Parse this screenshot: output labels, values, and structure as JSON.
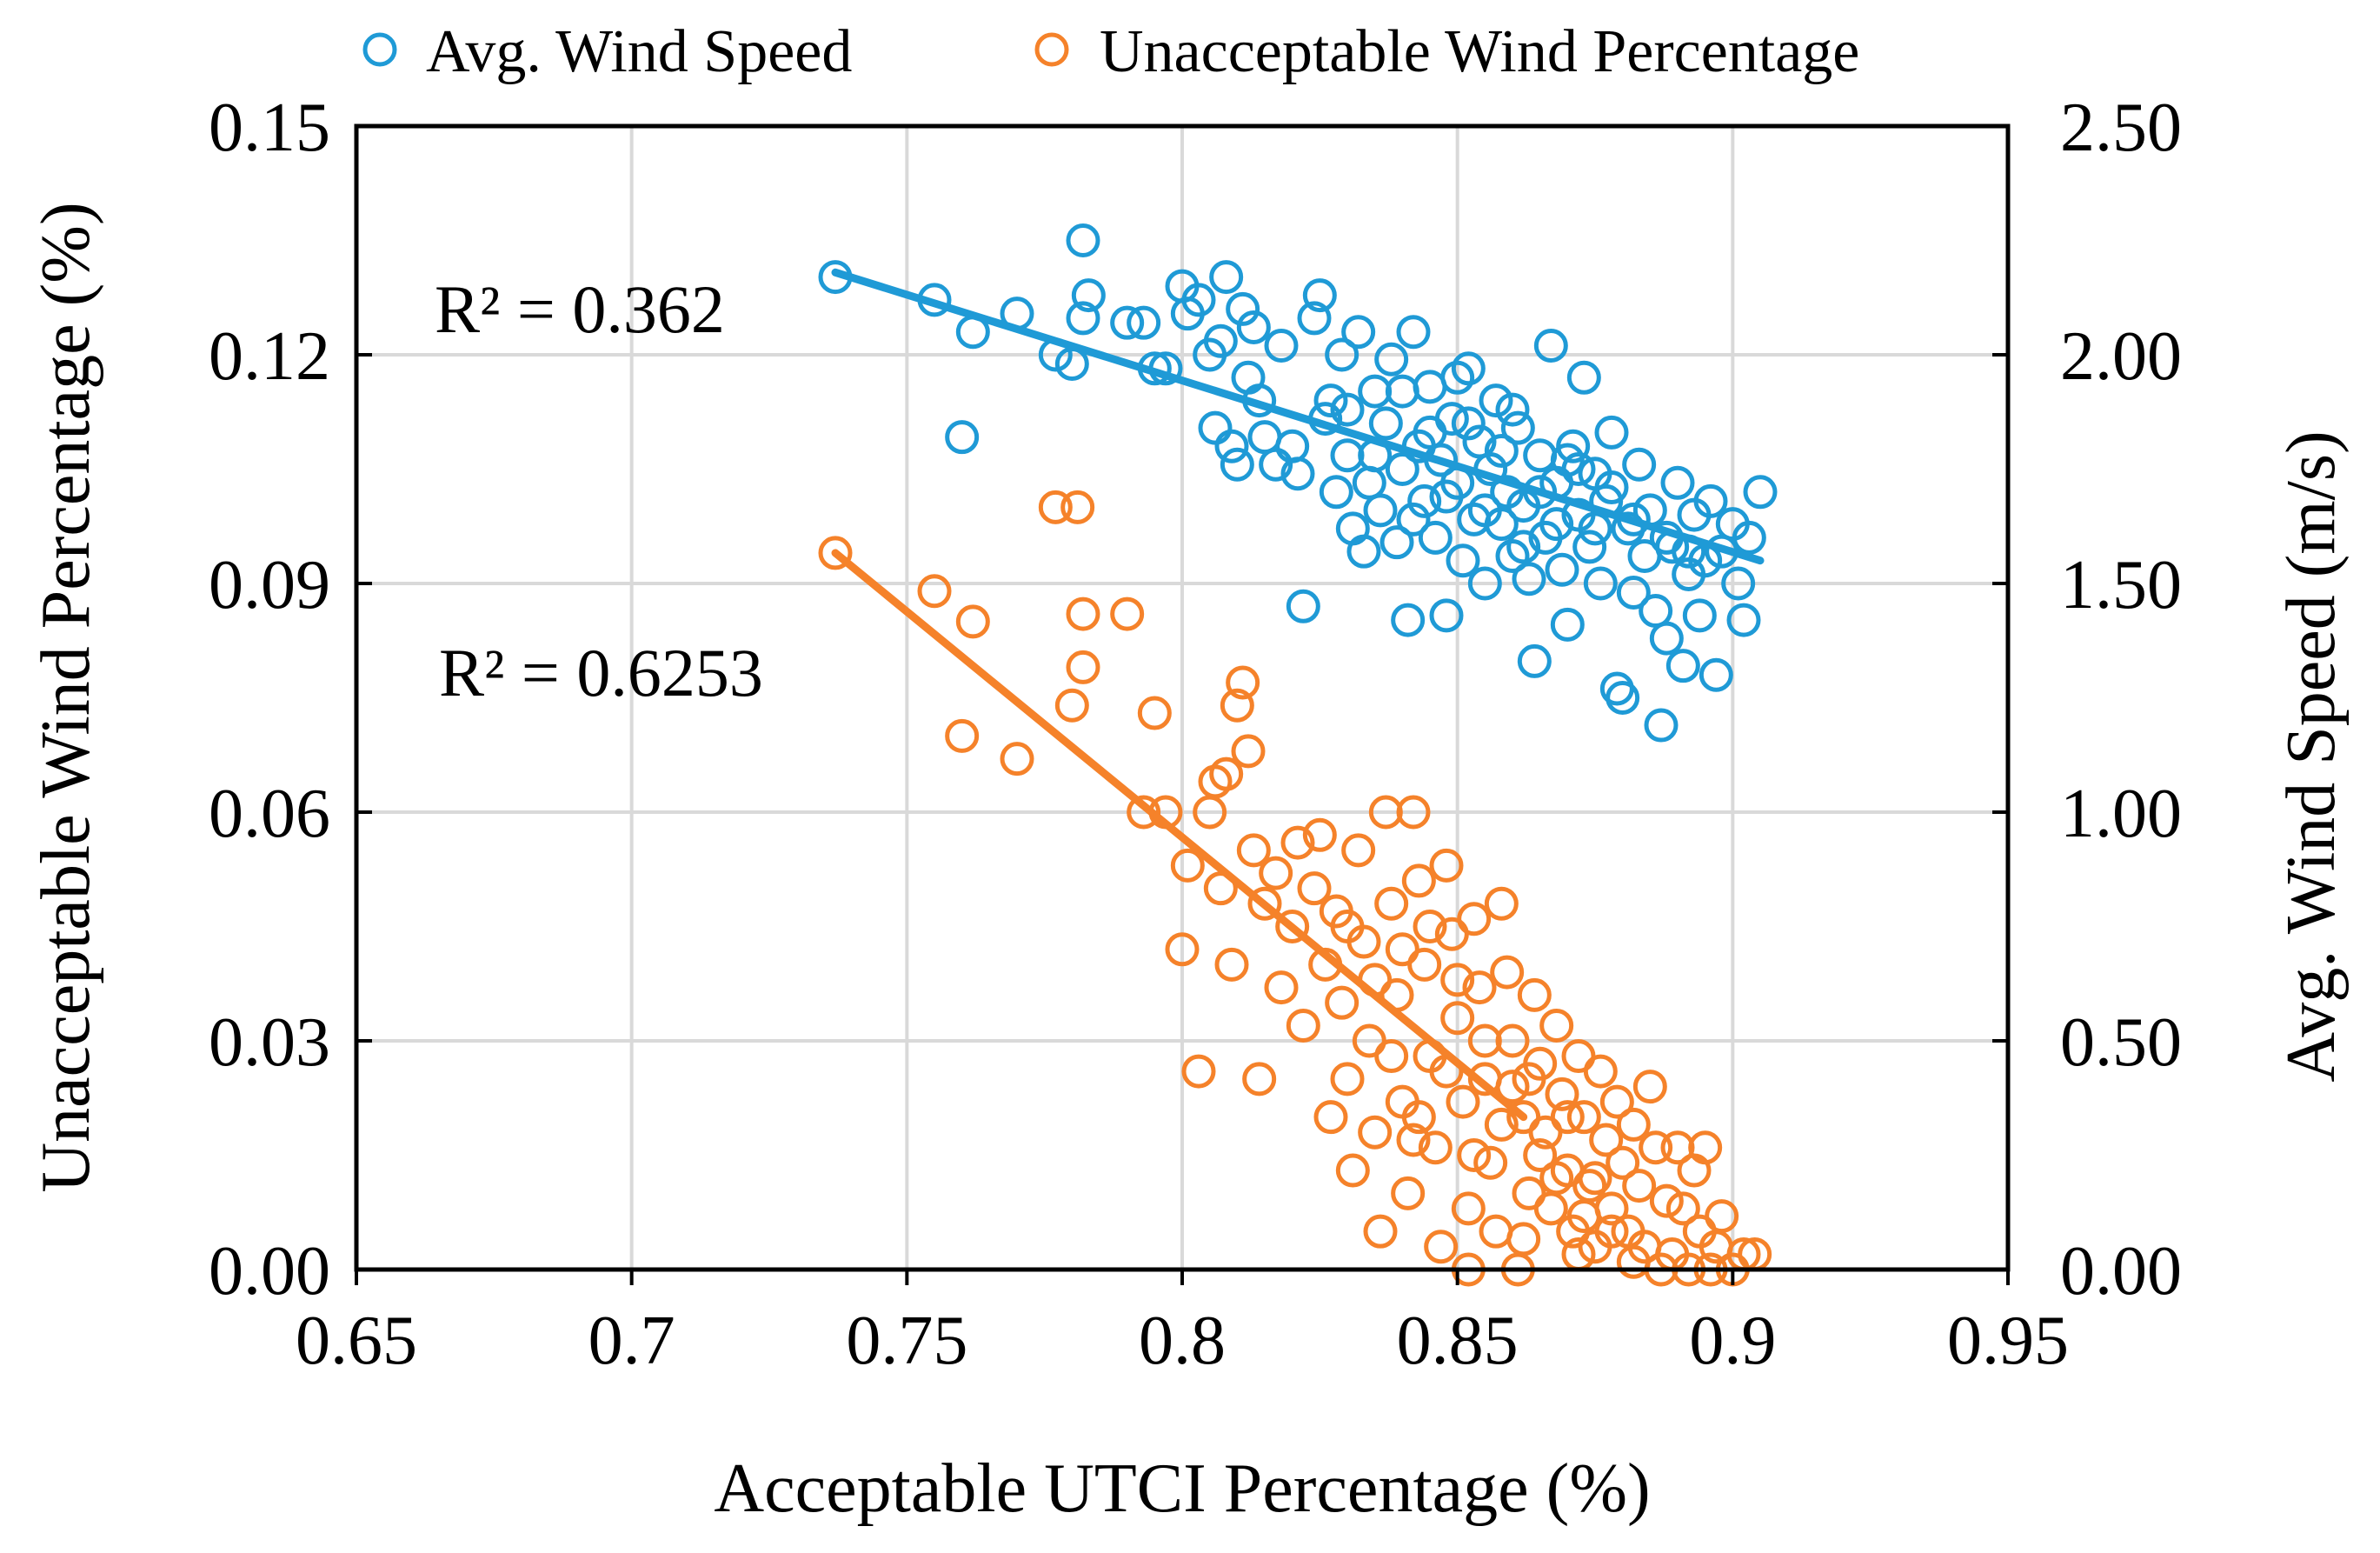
{
  "chart_data": {
    "type": "scatter",
    "title": "",
    "xlabel": "Acceptable UTCI Percentage (%)",
    "ylabel_left": "Unacceptable Wind Percentage (%)",
    "ylabel_right": "Avg. Wind Speed (m/s)",
    "xlim": [
      0.65,
      0.95
    ],
    "ylim_left": [
      0,
      0.15
    ],
    "ylim_right": [
      0,
      2.5
    ],
    "grid": true,
    "legend_position": "top",
    "x_ticks": [
      "0.65",
      "0.7",
      "0.75",
      "0.8",
      "0.85",
      "0.9",
      "0.95"
    ],
    "y_left_ticks": [
      "0.00",
      "0.03",
      "0.06",
      "0.09",
      "0.12",
      "0.15"
    ],
    "y_right_ticks": [
      "0.00",
      "0.50",
      "1.00",
      "1.50",
      "2.00",
      "2.50"
    ],
    "colors": {
      "avg_wind_speed": "#1f9ad6",
      "unacceptable_wind": "#f5822a"
    },
    "series": [
      {
        "name": "Avg. Wind Speed",
        "axis": "right",
        "annotation": "R² = 0.362",
        "trendline": {
          "x": [
            0.737,
            0.905
          ],
          "y": [
            2.18,
            1.55
          ]
        },
        "points": [
          [
            0.737,
            2.17
          ],
          [
            0.755,
            2.12
          ],
          [
            0.76,
            1.82
          ],
          [
            0.762,
            2.05
          ],
          [
            0.77,
            2.09
          ],
          [
            0.777,
            2.0
          ],
          [
            0.78,
            1.98
          ],
          [
            0.782,
            2.08
          ],
          [
            0.782,
            2.25
          ],
          [
            0.783,
            2.13
          ],
          [
            0.79,
            2.07
          ],
          [
            0.793,
            2.07
          ],
          [
            0.795,
            1.97
          ],
          [
            0.797,
            1.97
          ],
          [
            0.8,
            2.15
          ],
          [
            0.801,
            2.09
          ],
          [
            0.803,
            2.12
          ],
          [
            0.805,
            2.0
          ],
          [
            0.806,
            1.84
          ],
          [
            0.807,
            2.03
          ],
          [
            0.808,
            2.17
          ],
          [
            0.809,
            1.8
          ],
          [
            0.81,
            1.76
          ],
          [
            0.811,
            2.1
          ],
          [
            0.812,
            1.95
          ],
          [
            0.813,
            2.06
          ],
          [
            0.814,
            1.9
          ],
          [
            0.815,
            1.82
          ],
          [
            0.817,
            1.76
          ],
          [
            0.818,
            2.02
          ],
          [
            0.82,
            1.8
          ],
          [
            0.821,
            1.74
          ],
          [
            0.822,
            1.45
          ],
          [
            0.824,
            2.08
          ],
          [
            0.825,
            2.13
          ],
          [
            0.826,
            1.86
          ],
          [
            0.827,
            1.9
          ],
          [
            0.828,
            1.7
          ],
          [
            0.829,
            2.0
          ],
          [
            0.83,
            1.78
          ],
          [
            0.831,
            1.62
          ],
          [
            0.832,
            2.05
          ],
          [
            0.833,
            1.57
          ],
          [
            0.834,
            1.72
          ],
          [
            0.835,
            1.92
          ],
          [
            0.836,
            1.66
          ],
          [
            0.837,
            1.85
          ],
          [
            0.838,
            1.99
          ],
          [
            0.839,
            1.59
          ],
          [
            0.84,
            1.75
          ],
          [
            0.841,
            1.42
          ],
          [
            0.842,
            2.05
          ],
          [
            0.843,
            1.8
          ],
          [
            0.844,
            1.68
          ],
          [
            0.845,
            1.93
          ],
          [
            0.846,
            1.6
          ],
          [
            0.847,
            1.77
          ],
          [
            0.848,
            1.43
          ],
          [
            0.849,
            1.86
          ],
          [
            0.85,
            1.72
          ],
          [
            0.851,
            1.55
          ],
          [
            0.852,
            1.97
          ],
          [
            0.853,
            1.64
          ],
          [
            0.854,
            1.81
          ],
          [
            0.855,
            1.5
          ],
          [
            0.856,
            1.75
          ],
          [
            0.857,
            1.9
          ],
          [
            0.858,
            1.63
          ],
          [
            0.859,
            1.7
          ],
          [
            0.86,
            1.56
          ],
          [
            0.861,
            1.84
          ],
          [
            0.862,
            1.67
          ],
          [
            0.863,
            1.51
          ],
          [
            0.864,
            1.33
          ],
          [
            0.865,
            1.78
          ],
          [
            0.866,
            1.6
          ],
          [
            0.867,
            2.02
          ],
          [
            0.868,
            1.72
          ],
          [
            0.869,
            1.53
          ],
          [
            0.87,
            1.41
          ],
          [
            0.871,
            1.8
          ],
          [
            0.872,
            1.65
          ],
          [
            0.873,
            1.95
          ],
          [
            0.874,
            1.58
          ],
          [
            0.875,
            1.74
          ],
          [
            0.876,
            1.5
          ],
          [
            0.877,
            1.68
          ],
          [
            0.878,
            1.83
          ],
          [
            0.879,
            1.27
          ],
          [
            0.88,
            1.25
          ],
          [
            0.881,
            1.62
          ],
          [
            0.882,
            1.48
          ],
          [
            0.883,
            1.76
          ],
          [
            0.884,
            1.56
          ],
          [
            0.885,
            1.66
          ],
          [
            0.886,
            1.44
          ],
          [
            0.887,
            1.19
          ],
          [
            0.888,
            1.38
          ],
          [
            0.889,
            1.58
          ],
          [
            0.89,
            1.72
          ],
          [
            0.891,
            1.32
          ],
          [
            0.892,
            1.52
          ],
          [
            0.893,
            1.65
          ],
          [
            0.894,
            1.43
          ],
          [
            0.895,
            1.55
          ],
          [
            0.896,
            1.68
          ],
          [
            0.897,
            1.3
          ],
          [
            0.898,
            1.57
          ],
          [
            0.9,
            1.63
          ],
          [
            0.901,
            1.5
          ],
          [
            0.902,
            1.42
          ],
          [
            0.903,
            1.6
          ],
          [
            0.905,
            1.7
          ],
          [
            0.85,
            1.95
          ],
          [
            0.845,
            1.83
          ],
          [
            0.855,
            1.66
          ],
          [
            0.86,
            1.88
          ],
          [
            0.865,
            1.7
          ],
          [
            0.87,
            1.77
          ],
          [
            0.875,
            1.62
          ],
          [
            0.84,
            1.92
          ],
          [
            0.835,
            1.78
          ],
          [
            0.83,
            1.88
          ],
          [
            0.848,
            1.69
          ],
          [
            0.858,
            1.79
          ],
          [
            0.868,
            1.63
          ],
          [
            0.878,
            1.71
          ],
          [
            0.888,
            1.6
          ],
          [
            0.842,
            1.64
          ],
          [
            0.852,
            1.85
          ],
          [
            0.862,
            1.58
          ],
          [
            0.872,
            1.75
          ],
          [
            0.882,
            1.64
          ],
          [
            0.892,
            1.57
          ]
        ]
      },
      {
        "name": "Unacceptable Wind Percentage",
        "axis": "left",
        "annotation": "R² = 0.6253",
        "trendline": {
          "x": [
            0.737,
            0.862
          ],
          "y": [
            0.094,
            0.02
          ]
        },
        "points": [
          [
            0.737,
            0.094
          ],
          [
            0.755,
            0.089
          ],
          [
            0.76,
            0.07
          ],
          [
            0.762,
            0.085
          ],
          [
            0.77,
            0.067
          ],
          [
            0.777,
            0.1
          ],
          [
            0.78,
            0.074
          ],
          [
            0.781,
            0.1
          ],
          [
            0.782,
            0.086
          ],
          [
            0.782,
            0.079
          ],
          [
            0.79,
            0.086
          ],
          [
            0.793,
            0.06
          ],
          [
            0.795,
            0.073
          ],
          [
            0.797,
            0.06
          ],
          [
            0.8,
            0.042
          ],
          [
            0.801,
            0.053
          ],
          [
            0.803,
            0.026
          ],
          [
            0.805,
            0.06
          ],
          [
            0.806,
            0.064
          ],
          [
            0.807,
            0.05
          ],
          [
            0.808,
            0.065
          ],
          [
            0.809,
            0.04
          ],
          [
            0.81,
            0.074
          ],
          [
            0.811,
            0.077
          ],
          [
            0.812,
            0.068
          ],
          [
            0.813,
            0.055
          ],
          [
            0.814,
            0.025
          ],
          [
            0.815,
            0.048
          ],
          [
            0.817,
            0.052
          ],
          [
            0.818,
            0.037
          ],
          [
            0.82,
            0.045
          ],
          [
            0.821,
            0.056
          ],
          [
            0.822,
            0.032
          ],
          [
            0.824,
            0.05
          ],
          [
            0.825,
            0.057
          ],
          [
            0.826,
            0.04
          ],
          [
            0.827,
            0.02
          ],
          [
            0.828,
            0.047
          ],
          [
            0.829,
            0.035
          ],
          [
            0.83,
            0.025
          ],
          [
            0.831,
            0.013
          ],
          [
            0.832,
            0.055
          ],
          [
            0.833,
            0.043
          ],
          [
            0.834,
            0.03
          ],
          [
            0.835,
            0.018
          ],
          [
            0.836,
            0.005
          ],
          [
            0.837,
            0.06
          ],
          [
            0.838,
            0.048
          ],
          [
            0.839,
            0.036
          ],
          [
            0.84,
            0.022
          ],
          [
            0.841,
            0.01
          ],
          [
            0.842,
            0.06
          ],
          [
            0.843,
            0.051
          ],
          [
            0.844,
            0.04
          ],
          [
            0.845,
            0.028
          ],
          [
            0.846,
            0.016
          ],
          [
            0.847,
            0.003
          ],
          [
            0.848,
            0.053
          ],
          [
            0.849,
            0.044
          ],
          [
            0.85,
            0.033
          ],
          [
            0.851,
            0.022
          ],
          [
            0.852,
            0.0
          ],
          [
            0.853,
            0.046
          ],
          [
            0.854,
            0.037
          ],
          [
            0.855,
            0.025
          ],
          [
            0.856,
            0.014
          ],
          [
            0.857,
            0.005
          ],
          [
            0.858,
            0.048
          ],
          [
            0.859,
            0.039
          ],
          [
            0.86,
            0.03
          ],
          [
            0.861,
            0.0
          ],
          [
            0.862,
            0.02
          ],
          [
            0.863,
            0.01
          ],
          [
            0.864,
            0.036
          ],
          [
            0.865,
            0.027
          ],
          [
            0.866,
            0.018
          ],
          [
            0.867,
            0.008
          ],
          [
            0.868,
            0.032
          ],
          [
            0.869,
            0.023
          ],
          [
            0.87,
            0.013
          ],
          [
            0.871,
            0.005
          ],
          [
            0.872,
            0.028
          ],
          [
            0.873,
            0.02
          ],
          [
            0.874,
            0.011
          ],
          [
            0.875,
            0.003
          ],
          [
            0.876,
            0.026
          ],
          [
            0.877,
            0.017
          ],
          [
            0.878,
            0.008
          ],
          [
            0.879,
            0.022
          ],
          [
            0.88,
            0.014
          ],
          [
            0.881,
            0.005
          ],
          [
            0.882,
            0.019
          ],
          [
            0.883,
            0.011
          ],
          [
            0.884,
            0.003
          ],
          [
            0.885,
            0.024
          ],
          [
            0.886,
            0.016
          ],
          [
            0.887,
            0.0
          ],
          [
            0.888,
            0.009
          ],
          [
            0.889,
            0.002
          ],
          [
            0.89,
            0.016
          ],
          [
            0.891,
            0.008
          ],
          [
            0.892,
            0.0
          ],
          [
            0.893,
            0.013
          ],
          [
            0.894,
            0.005
          ],
          [
            0.895,
            0.016
          ],
          [
            0.896,
            0.0
          ],
          [
            0.897,
            0.003
          ],
          [
            0.898,
            0.007
          ],
          [
            0.9,
            0.0
          ],
          [
            0.902,
            0.002
          ],
          [
            0.904,
            0.002
          ],
          [
            0.845,
            0.045
          ],
          [
            0.85,
            0.038
          ],
          [
            0.855,
            0.03
          ],
          [
            0.86,
            0.024
          ],
          [
            0.865,
            0.015
          ],
          [
            0.87,
            0.02
          ],
          [
            0.875,
            0.012
          ],
          [
            0.84,
            0.042
          ],
          [
            0.835,
            0.038
          ],
          [
            0.83,
            0.045
          ],
          [
            0.848,
            0.026
          ],
          [
            0.858,
            0.019
          ],
          [
            0.868,
            0.012
          ],
          [
            0.878,
            0.005
          ],
          [
            0.842,
            0.017
          ],
          [
            0.852,
            0.008
          ],
          [
            0.862,
            0.004
          ],
          [
            0.872,
            0.002
          ],
          [
            0.882,
            0.001
          ],
          [
            0.838,
            0.028
          ],
          [
            0.843,
            0.02
          ],
          [
            0.853,
            0.015
          ],
          [
            0.863,
            0.025
          ],
          [
            0.873,
            0.007
          ]
        ]
      }
    ]
  }
}
